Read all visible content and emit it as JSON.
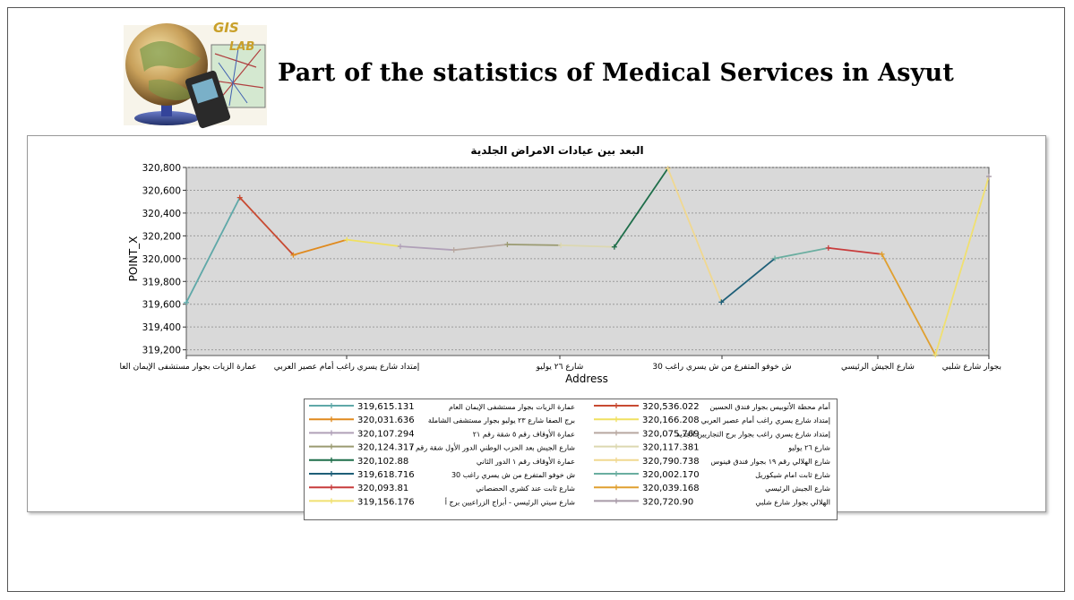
{
  "page": {
    "title": "Part of the statistics of Medical Services in Asyut",
    "logo_text_1": "GIS",
    "logo_text_2": "LAB"
  },
  "chart_data": {
    "type": "line",
    "title": "البعد بين عيادات الامراض الجلدية",
    "xlabel": "Address",
    "ylabel": "POINT_X",
    "ylim": [
      319150,
      320800
    ],
    "yticks": [
      319200,
      319400,
      319600,
      319800,
      320000,
      320200,
      320400,
      320600,
      320800
    ],
    "ytick_labels": [
      "319,200",
      "319,400",
      "319,600",
      "319,800",
      "320,000",
      "320,200",
      "320,400",
      "320,600",
      "320,800"
    ],
    "grid": true,
    "legend_position": "bottom",
    "x_tick_labels": [
      "عمارة الزيات بجوار مستشفى الإيمان العا",
      "إمتداد شارع يسري راغب أمام عصير العربي",
      "شارع ٢٦ يوليو",
      "ش خوفو المتفرع من ش يسري راغب 30",
      "شارع الجيش الرئيسي",
      "بجوار شارع شلبي"
    ],
    "series": [
      {
        "name": "عمارة الزيات بجوار مستشفى الإيمان العام",
        "label": "319,615.131",
        "value": 319615.131,
        "color": "#5fa8a8"
      },
      {
        "name": "أمام محطة الأتوبيس بجوار فندق الحسين",
        "label": "320,536.022",
        "value": 320536.022,
        "color": "#c84a32"
      },
      {
        "name": "برج الصفا شارع ٢٣ يوليو بجوار مستشفى الشاملة",
        "label": "320,031.636",
        "value": 320031.636,
        "color": "#e08a1e"
      },
      {
        "name": "إمتداد شارع يسري راغب أمام عصير العربي",
        "label": "320,166.208",
        "value": 320166.208,
        "color": "#f0e060"
      },
      {
        "name": "عمارة الأوقاف رقم ٥ شقة رقم ٢١",
        "label": "320,107.294",
        "value": 320107.294,
        "color": "#b0a0b8"
      },
      {
        "name": "إمتداد شارع يسري راغب بجوار برج التجاريين الجديد",
        "label": "320,075.769",
        "value": 320075.769,
        "color": "#b8a8a0"
      },
      {
        "name": "شارع الجيش بعد الحزب الوطني الدور الأول شقة رقم ١",
        "label": "320,124.317",
        "value": 320124.317,
        "color": "#9a9a70"
      },
      {
        "name": "شارع ٢٦ يوليو",
        "label": "320,117.381",
        "value": 320117.381,
        "color": "#dcd8b0"
      },
      {
        "name": "عمارة الأوقاف رقم ١ الدور الثاني",
        "label": "320,102.88",
        "value": 320102.88,
        "color": "#1e6e4a"
      },
      {
        "name": "شارع الهلالي رقم ١٩ بجوار فندق فينوس",
        "label": "320,790.738",
        "value": 320790.738,
        "color": "#f0d890"
      },
      {
        "name": "ش خوفو المتفرع من ش يسري راغب 30",
        "label": "319,618.716",
        "value": 319618.716,
        "color": "#1e5f78"
      },
      {
        "name": "شارع ثابت امام شيكوريل",
        "label": "320,002.170",
        "value": 320002.17,
        "color": "#6aaea0"
      },
      {
        "name": "شارع ثابت عند كشري الحضصاني",
        "label": "320,093.81",
        "value": 320093.81,
        "color": "#c83c3c"
      },
      {
        "name": "شارع الجيش الرئيسي",
        "label": "320,039.168",
        "value": 320039.168,
        "color": "#e0a030"
      },
      {
        "name": "شارع سيتي الرئيسي - أبراج الزراعيين برج أ",
        "label": "319,156.176",
        "value": 319156.176,
        "color": "#f0e070"
      },
      {
        "name": "الهلالي بجوار شارع شلبي",
        "label": "320,720.90",
        "value": 320720.9,
        "color": "#a89aa8"
      }
    ]
  }
}
